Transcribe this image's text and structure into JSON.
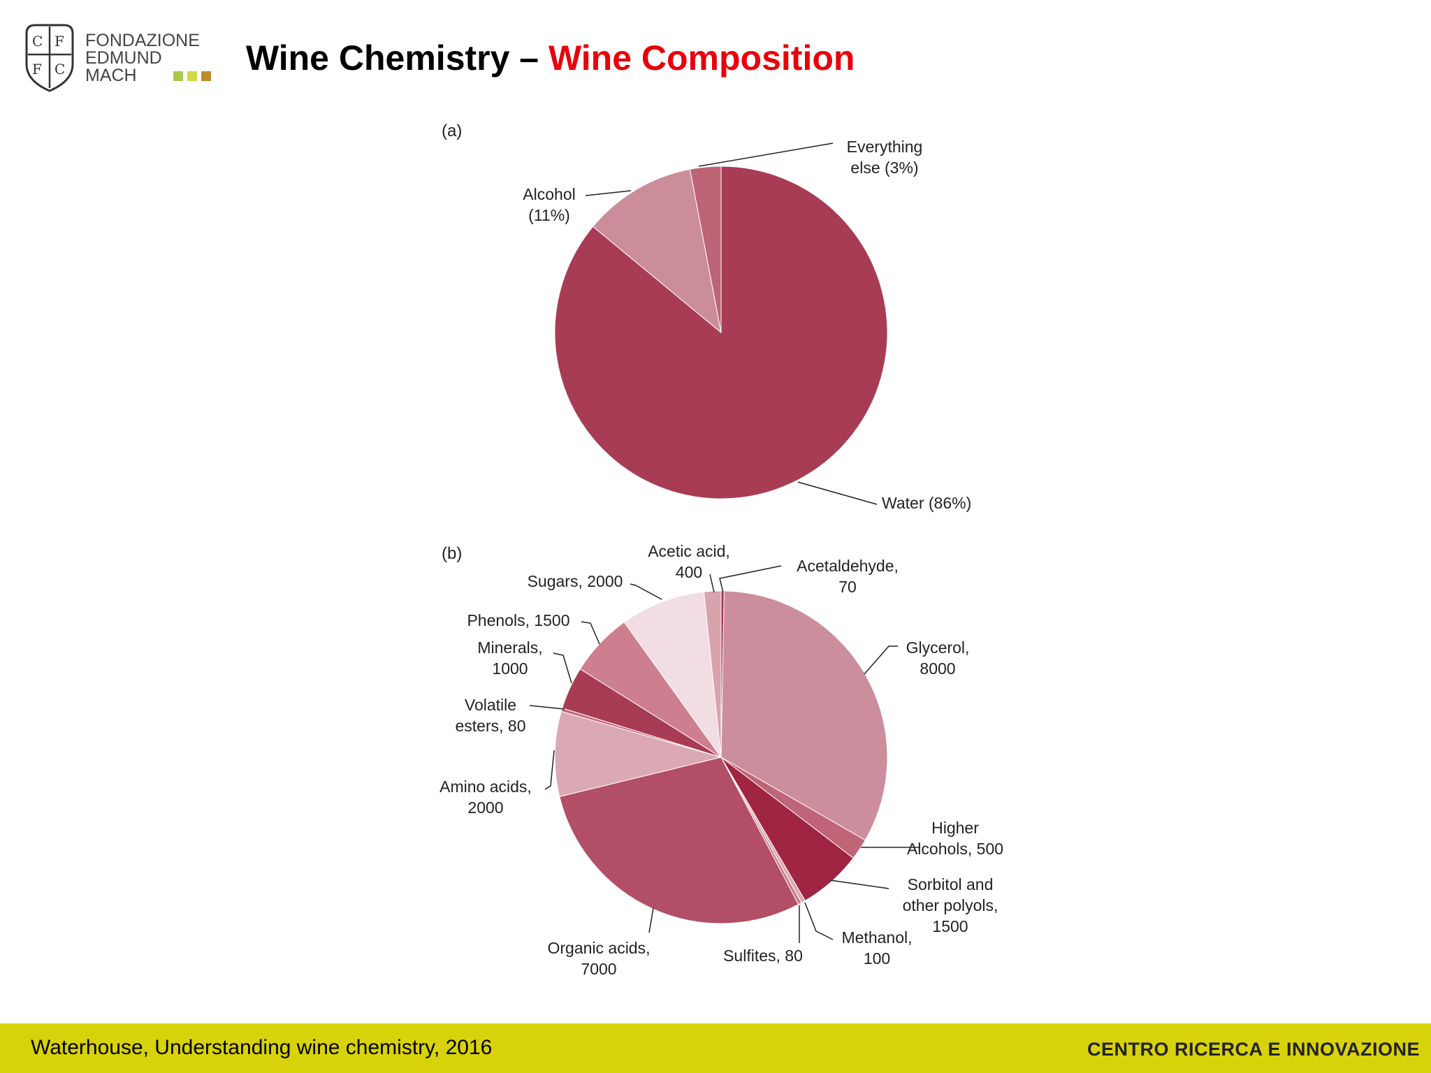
{
  "logo": {
    "lines": [
      "FONDAZIONE",
      "EDMUND",
      "MACH"
    ]
  },
  "title": {
    "main": "Wine Chemistry – ",
    "accent": "Wine Composition"
  },
  "footer": {
    "citation": "Waterhouse, Understanding wine chemistry, 2016",
    "brand": "CENTRO RICERCA E INNOVAZIONE"
  },
  "colors": {
    "accent": "#e8000b",
    "footer_bg": "#d8d20a"
  },
  "chart_data": [
    {
      "type": "pie",
      "panel_label": "(a)",
      "slices": [
        {
          "name": "Water",
          "value": 86,
          "label": [
            "Water (86%)"
          ],
          "color": "#a83c55"
        },
        {
          "name": "Alcohol",
          "value": 11,
          "label": [
            "Alcohol",
            "(11%)"
          ],
          "color": "#cc8d9a"
        },
        {
          "name": "Everything else",
          "value": 3,
          "label": [
            "Everything",
            "else (3%)"
          ],
          "color": "#bd6476"
        }
      ]
    },
    {
      "type": "pie",
      "panel_label": "(b)",
      "slices": [
        {
          "name": "Acetaldehyde",
          "value": 70,
          "label": [
            "Acetaldehyde,",
            "70"
          ],
          "color": "#a8324f"
        },
        {
          "name": "Glycerol",
          "value": 8000,
          "label": [
            "Glycerol,",
            "8000"
          ],
          "color": "#cc8e9c"
        },
        {
          "name": "Higher Alcohols",
          "value": 500,
          "label": [
            "Higher",
            "Alcohols, 500"
          ],
          "color": "#c06478"
        },
        {
          "name": "Sorbitol and other polyols",
          "value": 1500,
          "label": [
            "Sorbitol and",
            "other polyols,",
            "1500"
          ],
          "color": "#9f2542"
        },
        {
          "name": "Methanol",
          "value": 100,
          "label": [
            "Methanol,",
            "100"
          ],
          "color": "#dca9b3"
        },
        {
          "name": "Sulfites",
          "value": 80,
          "label": [
            "Sulfites, 80"
          ],
          "color": "#c7788a"
        },
        {
          "name": "Organic acids",
          "value": 7000,
          "label": [
            "Organic acids,",
            "7000"
          ],
          "color": "#b24e66"
        },
        {
          "name": "Amino acids",
          "value": 2000,
          "label": [
            "Amino acids,",
            "2000"
          ],
          "color": "#dba9b4"
        },
        {
          "name": "Volatile esters",
          "value": 80,
          "label": [
            "Volatile",
            "esters, 80"
          ],
          "color": "#c46c80"
        },
        {
          "name": "Minerals",
          "value": 1000,
          "label": [
            "Minerals,",
            "1000"
          ],
          "color": "#a83c55"
        },
        {
          "name": "Phenols",
          "value": 1500,
          "label": [
            "Phenols, 1500"
          ],
          "color": "#cd7f8f"
        },
        {
          "name": "Sugars",
          "value": 2000,
          "label": [
            "Sugars, 2000"
          ],
          "color": "#f1dde2"
        },
        {
          "name": "Acetic acid",
          "value": 400,
          "label": [
            "Acetic acid,",
            "400"
          ],
          "color": "#d9a3ae"
        }
      ]
    }
  ]
}
